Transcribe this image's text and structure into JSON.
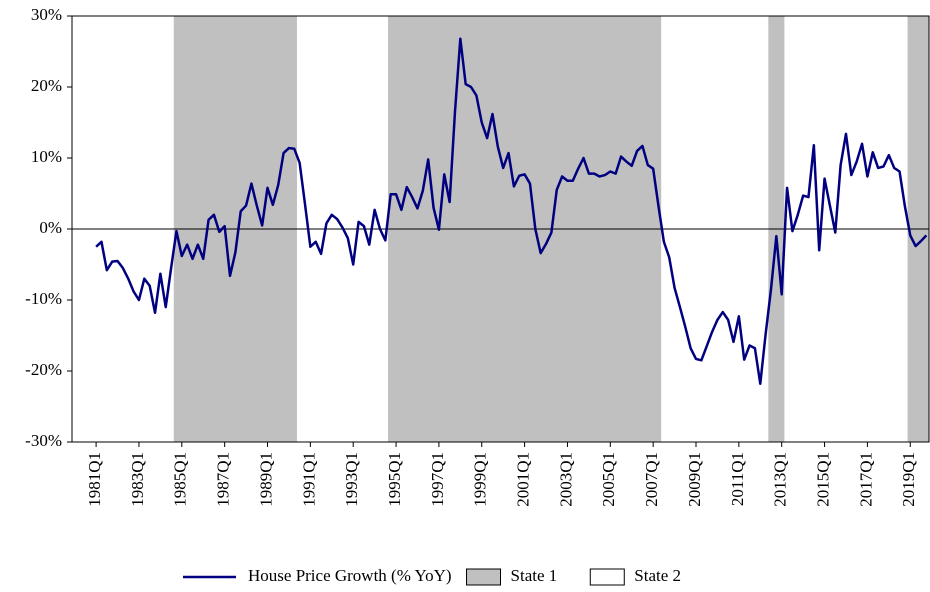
{
  "chart_data": {
    "type": "line",
    "categories": [
      null,
      null,
      null,
      null,
      "1981Q1",
      null,
      null,
      null,
      null,
      null,
      null,
      null,
      "1983Q1",
      null,
      null,
      null,
      null,
      null,
      null,
      null,
      "1985Q1",
      null,
      null,
      null,
      null,
      null,
      null,
      null,
      "1987Q1",
      null,
      null,
      null,
      null,
      null,
      null,
      null,
      "1989Q1",
      null,
      null,
      null,
      null,
      null,
      null,
      null,
      "1991Q1",
      null,
      null,
      null,
      null,
      null,
      null,
      null,
      "1993Q1",
      null,
      null,
      null,
      null,
      null,
      null,
      null,
      "1995Q1",
      null,
      null,
      null,
      null,
      null,
      null,
      null,
      "1997Q1",
      null,
      null,
      null,
      null,
      null,
      null,
      null,
      "1999Q1",
      null,
      null,
      null,
      null,
      null,
      null,
      null,
      "2001Q1",
      null,
      null,
      null,
      null,
      null,
      null,
      null,
      "2003Q1",
      null,
      null,
      null,
      null,
      null,
      null,
      null,
      "2005Q1",
      null,
      null,
      null,
      null,
      null,
      null,
      null,
      "2007Q1",
      null,
      null,
      null,
      null,
      null,
      null,
      null,
      "2009Q1",
      null,
      null,
      null,
      null,
      null,
      null,
      null,
      "2011Q1",
      null,
      null,
      null,
      null,
      null,
      null,
      null,
      "2013Q1",
      null,
      null,
      null,
      null,
      null,
      null,
      null,
      "2015Q1",
      null,
      null,
      null,
      null,
      null,
      null,
      null,
      "2017Q1",
      null,
      null,
      null,
      null,
      null,
      null,
      null,
      "2019Q1",
      null,
      null,
      null
    ],
    "series": [
      {
        "name": "House Price Growth (% YoY)",
        "color": "#000080",
        "values": [
          null,
          null,
          null,
          null,
          -2.5,
          -1.8,
          -5.8,
          -4.6,
          -4.5,
          -5.5,
          -7,
          -8.8,
          -10,
          -7,
          -8,
          -11.8,
          -6.3,
          -11,
          -5.5,
          -0.3,
          -3.8,
          -2.2,
          -4.2,
          -2.2,
          -4.2,
          1.3,
          2.0,
          -0.4,
          0.4,
          -6.6,
          -3.3,
          2.5,
          3.3,
          6.4,
          3.3,
          0.5,
          5.8,
          3.4,
          6.2,
          10.7,
          11.4,
          11.3,
          9.3,
          3.5,
          -2.5,
          -1.8,
          -3.5,
          0.8,
          2.0,
          1.4,
          0.2,
          -1.3,
          -5.0,
          1.0,
          0.4,
          -2.2,
          2.7,
          0.0,
          -1.6,
          4.9,
          4.9,
          2.7,
          5.9,
          4.5,
          2.9,
          5.4,
          9.8,
          3.0,
          -0.1,
          7.7,
          3.8,
          16.5,
          26.8,
          20.4,
          20.0,
          18.8,
          15.0,
          12.8,
          16.2,
          11.6,
          8.6,
          10.7,
          6.0,
          7.5,
          7.7,
          6.4,
          0,
          -3.4,
          -2.1,
          -0.5,
          5.5,
          7.4,
          6.8,
          6.8,
          8.5,
          10.0,
          7.8,
          7.8,
          7.4,
          7.6,
          8.1,
          7.8,
          10.2,
          9.5,
          8.9,
          11.0,
          11.7,
          9.0,
          8.5,
          3.2,
          -1.8,
          -4.0,
          -8.3,
          -11.0,
          -13.8,
          -16.8,
          -18.3,
          -18.5,
          -16.5,
          -14.5,
          -12.8,
          -11.7,
          -12.8,
          -15.9,
          -12.3,
          -18.4,
          -16.4,
          -16.8,
          -21.8,
          -14.8,
          -8.5,
          -1.0,
          -9.2,
          5.8,
          -0.3,
          2.0,
          4.7,
          4.5,
          11.8,
          -3.0,
          7.1,
          3.3,
          -0.5,
          9.0,
          13.4,
          7.6,
          9.5,
          12.0,
          7.4,
          10.8,
          8.6,
          8.8,
          10.4,
          8.6,
          8.1,
          3.2,
          -0.9,
          -2.4,
          -1.7,
          -0.9
        ]
      }
    ],
    "regimes": {
      "states": [
        {
          "name": "State 1",
          "color": "#c0c0c0"
        },
        {
          "name": "State 2",
          "color": "#ffffff"
        }
      ],
      "values": [
        2,
        2,
        2,
        2,
        2,
        2,
        2,
        2,
        2,
        2,
        2,
        2,
        2,
        2,
        2,
        2,
        2,
        2,
        2,
        1,
        1,
        1,
        1,
        1,
        1,
        1,
        1,
        1,
        1,
        1,
        1,
        1,
        1,
        1,
        1,
        1,
        1,
        1,
        1,
        1,
        1,
        1,
        2,
        2,
        2,
        2,
        2,
        2,
        2,
        2,
        2,
        2,
        2,
        2,
        2,
        2,
        2,
        2,
        2,
        1,
        1,
        1,
        1,
        1,
        1,
        1,
        1,
        1,
        1,
        1,
        1,
        1,
        1,
        1,
        1,
        1,
        1,
        1,
        1,
        1,
        1,
        1,
        1,
        1,
        1,
        1,
        1,
        1,
        1,
        1,
        1,
        1,
        1,
        1,
        1,
        1,
        1,
        1,
        1,
        1,
        1,
        1,
        1,
        1,
        1,
        1,
        1,
        1,
        1,
        1,
        2,
        2,
        2,
        2,
        2,
        2,
        2,
        2,
        2,
        2,
        2,
        2,
        2,
        2,
        2,
        2,
        2,
        2,
        2,
        2,
        1,
        1,
        1,
        2,
        2,
        2,
        2,
        2,
        2,
        2,
        2,
        2,
        2,
        2,
        2,
        2,
        2,
        2,
        2,
        2,
        2,
        2,
        2,
        2,
        2,
        2,
        1,
        1,
        1,
        1
      ]
    },
    "ylim": [
      -30,
      30
    ],
    "yticks": [
      {
        "value": 30,
        "label": "30%"
      },
      {
        "value": 20,
        "label": "20%"
      },
      {
        "value": 10,
        "label": "10%"
      },
      {
        "value": 0,
        "label": "0%"
      },
      {
        "value": -10,
        "label": "-10%"
      },
      {
        "value": -20,
        "label": "-20%"
      },
      {
        "value": -30,
        "label": "-30%"
      }
    ],
    "legend": "bottom"
  }
}
